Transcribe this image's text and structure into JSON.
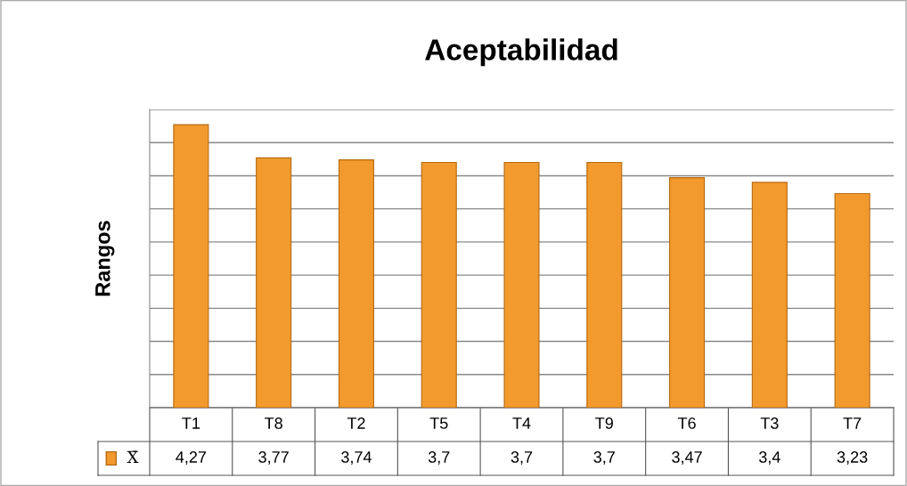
{
  "chart_data": {
    "type": "bar",
    "title": "Aceptabilidad",
    "ylabel": "Rangos",
    "categories": [
      "T1",
      "T8",
      "T2",
      "T5",
      "T4",
      "T9",
      "T6",
      "T3",
      "T7"
    ],
    "series": [
      {
        "name": "X̄",
        "color": "#f29a2e",
        "values": [
          4.27,
          3.77,
          3.74,
          3.7,
          3.7,
          3.7,
          3.47,
          3.4,
          3.23
        ],
        "value_labels": [
          "4,27",
          "3,77",
          "3,74",
          "3,7",
          "3,7",
          "3,7",
          "3,47",
          "3,4",
          "3,23"
        ]
      }
    ],
    "ylim": [
      0,
      4.5
    ],
    "yticks": [
      {
        "value": 0,
        "label": null
      },
      {
        "value": 0.5,
        "label": null
      },
      {
        "value": 1,
        "label": null
      },
      {
        "value": 1.5,
        "label": null
      },
      {
        "value": 2,
        "label": null
      },
      {
        "value": 2.5,
        "label": null
      },
      {
        "value": 3,
        "label": null
      },
      {
        "value": 3.5,
        "label": null
      },
      {
        "value": 4,
        "label": null
      },
      {
        "value": 4.5,
        "label": null
      }
    ],
    "grid": "y",
    "tick_labels": "x"
  }
}
